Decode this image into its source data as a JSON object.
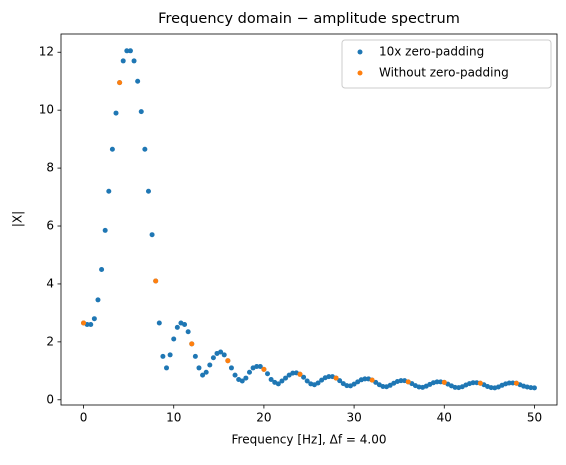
{
  "chart_data": {
    "type": "scatter",
    "title": "Frequency domain − amplitude spectrum",
    "x_label": "Frequency [Hz], Δf = 4.00",
    "y_label": "|X|",
    "xlim": [
      -2.5,
      52.5
    ],
    "xticks": [
      0,
      10,
      20,
      30,
      40,
      50
    ],
    "ylim": [
      -0.18,
      12.63
    ],
    "yticks": [
      0,
      2,
      4,
      6,
      8,
      10,
      12
    ],
    "legend": "upper right",
    "series": [
      {
        "name": "10x zero-padding",
        "color": "#1f77b4",
        "x": [
          0,
          0.4,
          0.8,
          1.2,
          1.6,
          2,
          2.4,
          2.8,
          3.2,
          3.6,
          4,
          4.4,
          4.8,
          5.2,
          5.6,
          6,
          6.4,
          6.8,
          7.2,
          7.6,
          8,
          8.4,
          8.8,
          9.2,
          9.6,
          10,
          10.4,
          10.8,
          11.2,
          11.6,
          12,
          12.4,
          12.8,
          13.2,
          13.6,
          14,
          14.4,
          14.8,
          15.2,
          15.6,
          16,
          16.4,
          16.8,
          17.2,
          17.6,
          18,
          18.4,
          18.8,
          19.2,
          19.6,
          20,
          20.4,
          20.8,
          21.2,
          21.6,
          22,
          22.4,
          22.8,
          23.2,
          23.6,
          24,
          24.4,
          24.8,
          25.2,
          25.6,
          26,
          26.4,
          26.8,
          27.2,
          27.6,
          28,
          28.4,
          28.8,
          29.2,
          29.6,
          30,
          30.4,
          30.8,
          31.2,
          31.6,
          32,
          32.4,
          32.8,
          33.2,
          33.6,
          34,
          34.4,
          34.8,
          35.2,
          35.6,
          36,
          36.4,
          36.8,
          37.2,
          37.6,
          38,
          38.4,
          38.8,
          39.2,
          39.6,
          40,
          40.4,
          40.8,
          41.2,
          41.6,
          42,
          42.4,
          42.8,
          43.2,
          43.6,
          44,
          44.4,
          44.8,
          45.2,
          45.6,
          46,
          46.4,
          46.8,
          47.2,
          47.6,
          48,
          48.4,
          48.8,
          49.2,
          49.6,
          50
        ],
        "values": [
          2.65,
          2.6,
          2.6,
          2.8,
          3.45,
          4.5,
          5.85,
          7.2,
          8.65,
          9.9,
          10.95,
          11.7,
          12.05,
          12.05,
          11.7,
          11.0,
          9.95,
          8.65,
          7.2,
          5.7,
          4.1,
          2.65,
          1.5,
          1.1,
          1.55,
          2.1,
          2.5,
          2.65,
          2.6,
          2.35,
          1.93,
          1.5,
          1.1,
          0.85,
          0.95,
          1.2,
          1.45,
          1.6,
          1.65,
          1.55,
          1.35,
          1.1,
          0.85,
          0.7,
          0.65,
          0.75,
          0.95,
          1.1,
          1.15,
          1.15,
          1.05,
          0.9,
          0.7,
          0.6,
          0.55,
          0.65,
          0.75,
          0.85,
          0.92,
          0.93,
          0.88,
          0.78,
          0.65,
          0.55,
          0.52,
          0.58,
          0.68,
          0.76,
          0.8,
          0.8,
          0.75,
          0.66,
          0.56,
          0.49,
          0.48,
          0.54,
          0.62,
          0.69,
          0.72,
          0.72,
          0.68,
          0.6,
          0.52,
          0.46,
          0.45,
          0.5,
          0.57,
          0.63,
          0.66,
          0.66,
          0.62,
          0.56,
          0.49,
          0.44,
          0.43,
          0.47,
          0.53,
          0.59,
          0.62,
          0.62,
          0.6,
          0.54,
          0.48,
          0.43,
          0.42,
          0.45,
          0.51,
          0.56,
          0.59,
          0.59,
          0.57,
          0.52,
          0.46,
          0.42,
          0.41,
          0.44,
          0.5,
          0.55,
          0.58,
          0.58,
          0.57,
          0.52,
          0.47,
          0.44,
          0.42,
          0.41
        ]
      },
      {
        "name": "Without zero-padding",
        "color": "#ff7f0e",
        "x": [
          0,
          4,
          8,
          12,
          16,
          20,
          24,
          28,
          32,
          36,
          40,
          44,
          48
        ],
        "values": [
          2.65,
          10.95,
          4.1,
          1.93,
          1.35,
          1.05,
          0.88,
          0.75,
          0.68,
          0.62,
          0.6,
          0.57,
          0.57
        ]
      }
    ]
  }
}
